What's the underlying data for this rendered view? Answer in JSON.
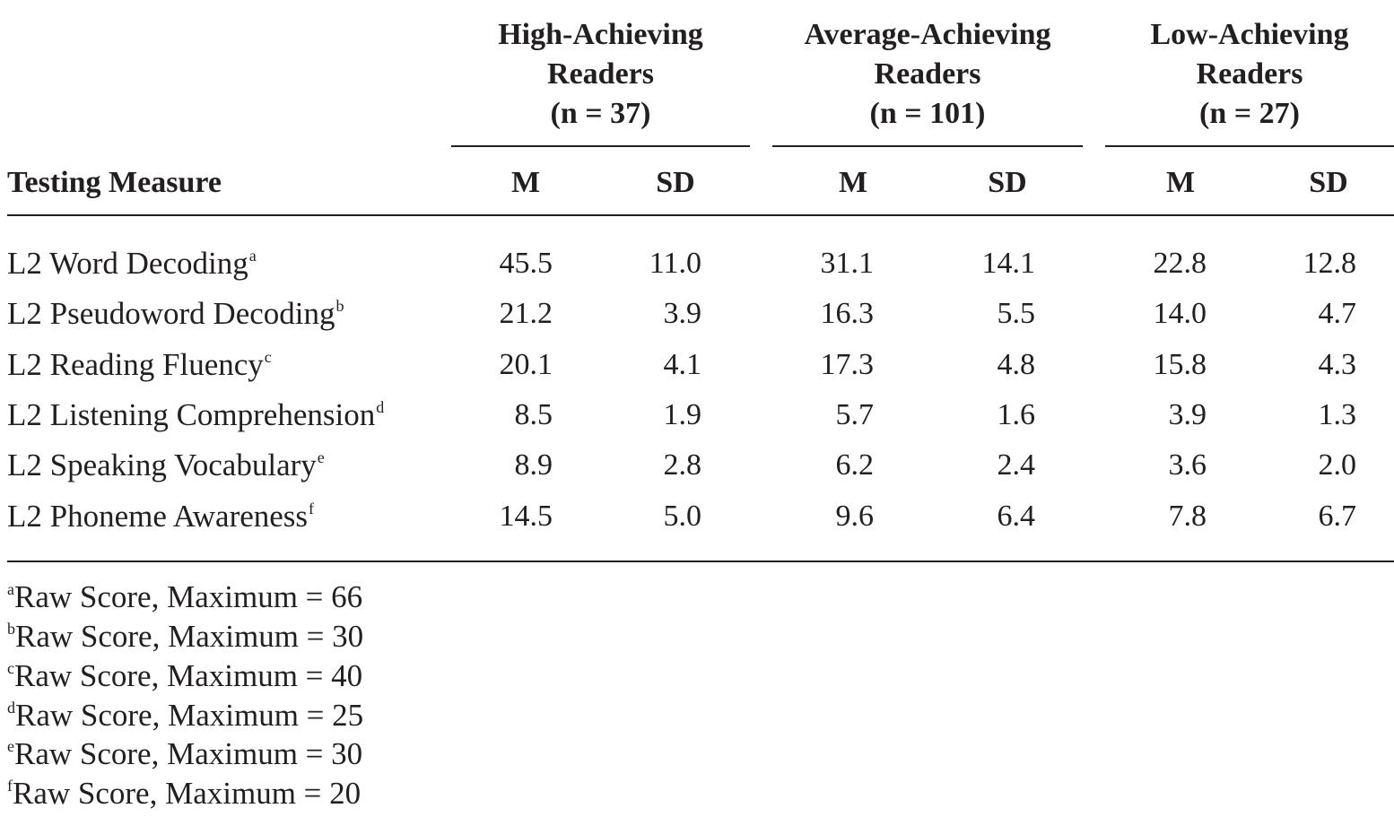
{
  "groups": [
    {
      "line1": "High-Achieving",
      "line2": "Readers",
      "line3": "(n = 37)"
    },
    {
      "line1": "Average-Achieving",
      "line2": "Readers",
      "line3": "(n = 101)"
    },
    {
      "line1": "Low-Achieving",
      "line2": "Readers",
      "line3": "(n = 27)"
    }
  ],
  "column_headers": {
    "measure": "Testing Measure",
    "m": "M",
    "sd": "SD"
  },
  "rows": [
    {
      "measure": "L2 Word Decoding",
      "sup": "a",
      "values": [
        "45.5",
        "11.0",
        "31.1",
        "14.1",
        "22.8",
        "12.8"
      ]
    },
    {
      "measure": "L2 Pseudoword Decoding",
      "sup": "b",
      "values": [
        "21.2",
        "3.9",
        "16.3",
        "5.5",
        "14.0",
        "4.7"
      ]
    },
    {
      "measure": "L2 Reading Fluency",
      "sup": "c",
      "values": [
        "20.1",
        "4.1",
        "17.3",
        "4.8",
        "15.8",
        "4.3"
      ]
    },
    {
      "measure": "L2 Listening Comprehension",
      "sup": "d",
      "values": [
        "8.5",
        "1.9",
        "5.7",
        "1.6",
        "3.9",
        "1.3"
      ]
    },
    {
      "measure": "L2 Speaking Vocabulary",
      "sup": "e",
      "values": [
        "8.9",
        "2.8",
        "6.2",
        "2.4",
        "3.6",
        "2.0"
      ]
    },
    {
      "measure": "L2 Phoneme Awareness",
      "sup": "f",
      "values": [
        "14.5",
        "5.0",
        "9.6",
        "6.4",
        "7.8",
        "6.7"
      ]
    }
  ],
  "footnotes": [
    {
      "sup": "a",
      "text": "Raw Score, Maximum = 66"
    },
    {
      "sup": "b",
      "text": "Raw Score, Maximum = 30"
    },
    {
      "sup": "c",
      "text": "Raw Score, Maximum = 40"
    },
    {
      "sup": "d",
      "text": "Raw Score, Maximum = 25"
    },
    {
      "sup": "e",
      "text": "Raw Score, Maximum = 30"
    },
    {
      "sup": "f",
      "text": "Raw Score, Maximum = 20"
    }
  ]
}
